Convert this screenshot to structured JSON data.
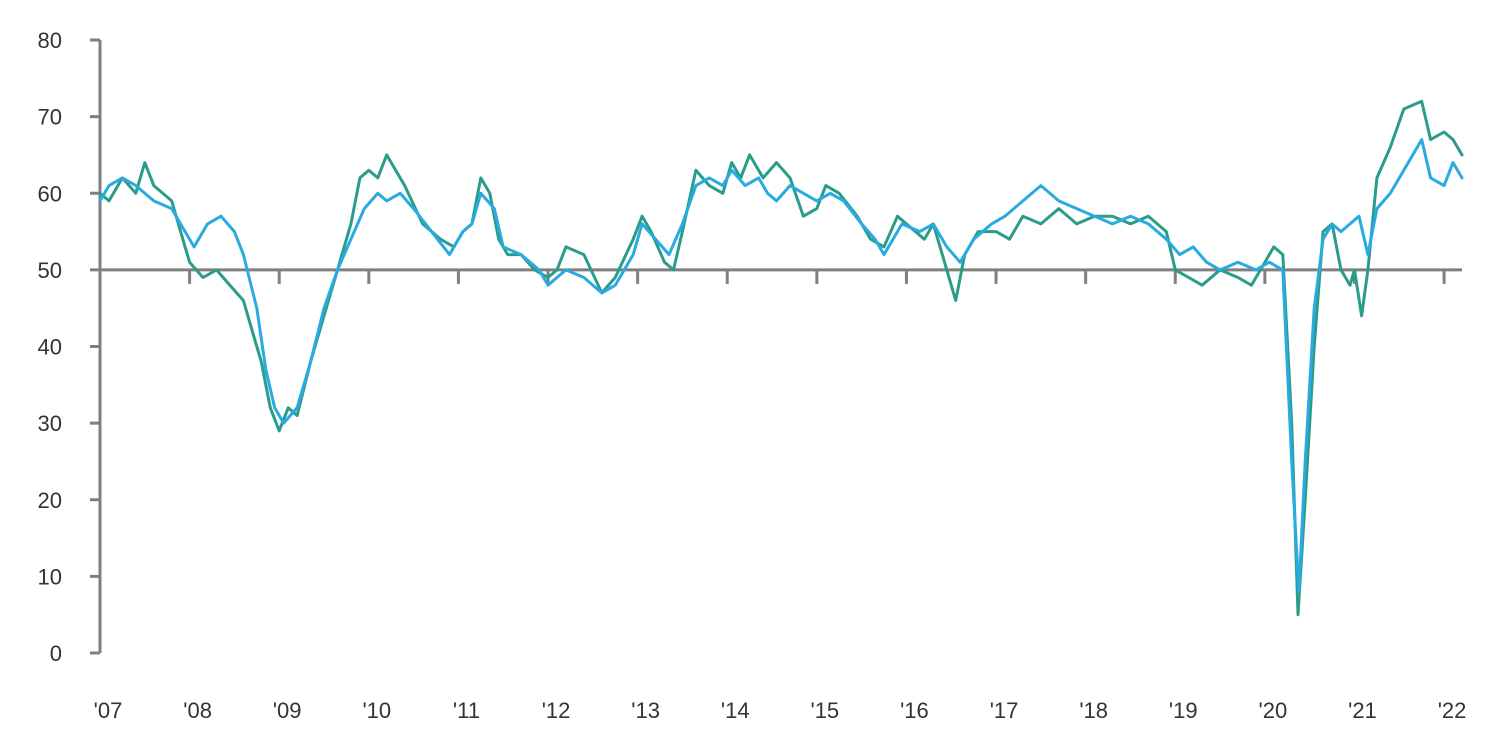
{
  "chart_data": {
    "type": "line",
    "title": "",
    "xlabel": "",
    "ylabel": "",
    "ylim": [
      0,
      80
    ],
    "yticks": [
      0,
      10,
      20,
      30,
      40,
      50,
      60,
      70,
      80
    ],
    "ytick_labels": [
      "0",
      "10",
      "20",
      "30",
      "40",
      "50",
      "60",
      "70",
      "80"
    ],
    "xlim": [
      2007.0,
      2022.2
    ],
    "xticks": [
      2007,
      2008,
      2009,
      2010,
      2011,
      2012,
      2013,
      2014,
      2015,
      2016,
      2017,
      2018,
      2019,
      2020,
      2021,
      2022
    ],
    "xtick_labels": [
      "'07",
      "'08",
      "'09",
      "'10",
      "'11",
      "'12",
      "'13",
      "'14",
      "'15",
      "'16",
      "'17",
      "'18",
      "'19",
      "'20",
      "'21",
      "'22"
    ],
    "reference_line": 50,
    "grid": false,
    "legend": "none",
    "colors": {
      "series_a": "#2a9d8a",
      "series_b": "#29abe2",
      "axis": "#7f7f7f"
    },
    "series": [
      {
        "color": "#2a9d8a",
        "points": [
          [
            2007.0,
            60
          ],
          [
            2007.1,
            59
          ],
          [
            2007.25,
            62
          ],
          [
            2007.4,
            60
          ],
          [
            2007.5,
            64
          ],
          [
            2007.6,
            61
          ],
          [
            2007.8,
            59
          ],
          [
            2007.95,
            53
          ],
          [
            2008.0,
            51
          ],
          [
            2008.15,
            49
          ],
          [
            2008.3,
            50
          ],
          [
            2008.45,
            48
          ],
          [
            2008.6,
            46
          ],
          [
            2008.7,
            42
          ],
          [
            2008.8,
            38
          ],
          [
            2008.9,
            32
          ],
          [
            2009.0,
            29
          ],
          [
            2009.1,
            32
          ],
          [
            2009.2,
            31
          ],
          [
            2009.35,
            38
          ],
          [
            2009.5,
            44
          ],
          [
            2009.65,
            50
          ],
          [
            2009.8,
            56
          ],
          [
            2009.9,
            62
          ],
          [
            2010.0,
            63
          ],
          [
            2010.1,
            62
          ],
          [
            2010.2,
            65
          ],
          [
            2010.4,
            61
          ],
          [
            2010.6,
            56
          ],
          [
            2010.8,
            54
          ],
          [
            2010.95,
            53
          ],
          [
            2011.05,
            55
          ],
          [
            2011.15,
            56
          ],
          [
            2011.25,
            62
          ],
          [
            2011.35,
            60
          ],
          [
            2011.45,
            54
          ],
          [
            2011.55,
            52
          ],
          [
            2011.7,
            52
          ],
          [
            2011.85,
            50
          ],
          [
            2012.0,
            49
          ],
          [
            2012.1,
            50
          ],
          [
            2012.2,
            53
          ],
          [
            2012.4,
            52
          ],
          [
            2012.6,
            47
          ],
          [
            2012.75,
            49
          ],
          [
            2012.95,
            54
          ],
          [
            2013.05,
            57
          ],
          [
            2013.15,
            55
          ],
          [
            2013.3,
            51
          ],
          [
            2013.4,
            50
          ],
          [
            2013.5,
            55
          ],
          [
            2013.65,
            63
          ],
          [
            2013.8,
            61
          ],
          [
            2013.95,
            60
          ],
          [
            2014.05,
            64
          ],
          [
            2014.15,
            62
          ],
          [
            2014.25,
            65
          ],
          [
            2014.4,
            62
          ],
          [
            2014.55,
            64
          ],
          [
            2014.7,
            62
          ],
          [
            2014.85,
            57
          ],
          [
            2015.0,
            58
          ],
          [
            2015.1,
            61
          ],
          [
            2015.25,
            60
          ],
          [
            2015.45,
            57
          ],
          [
            2015.6,
            54
          ],
          [
            2015.75,
            53
          ],
          [
            2015.9,
            57
          ],
          [
            2016.1,
            55
          ],
          [
            2016.2,
            54
          ],
          [
            2016.3,
            56
          ],
          [
            2016.45,
            50
          ],
          [
            2016.55,
            46
          ],
          [
            2016.65,
            52
          ],
          [
            2016.8,
            55
          ],
          [
            2017.0,
            55
          ],
          [
            2017.15,
            54
          ],
          [
            2017.3,
            57
          ],
          [
            2017.5,
            56
          ],
          [
            2017.7,
            58
          ],
          [
            2017.9,
            56
          ],
          [
            2018.1,
            57
          ],
          [
            2018.3,
            57
          ],
          [
            2018.5,
            56
          ],
          [
            2018.7,
            57
          ],
          [
            2018.9,
            55
          ],
          [
            2019.0,
            50
          ],
          [
            2019.15,
            49
          ],
          [
            2019.3,
            48
          ],
          [
            2019.5,
            50
          ],
          [
            2019.7,
            49
          ],
          [
            2019.85,
            48
          ],
          [
            2020.0,
            51
          ],
          [
            2020.1,
            53
          ],
          [
            2020.2,
            52
          ],
          [
            2020.3,
            30
          ],
          [
            2020.37,
            5
          ],
          [
            2020.45,
            20
          ],
          [
            2020.55,
            40
          ],
          [
            2020.65,
            55
          ],
          [
            2020.75,
            56
          ],
          [
            2020.85,
            50
          ],
          [
            2020.95,
            48
          ],
          [
            2021.0,
            50
          ],
          [
            2021.08,
            44
          ],
          [
            2021.15,
            50
          ],
          [
            2021.25,
            62
          ],
          [
            2021.4,
            66
          ],
          [
            2021.55,
            71
          ],
          [
            2021.75,
            72
          ],
          [
            2021.85,
            67
          ],
          [
            2022.0,
            68
          ],
          [
            2022.1,
            67
          ],
          [
            2022.2,
            65
          ]
        ]
      },
      {
        "color": "#29abe2",
        "points": [
          [
            2007.0,
            59
          ],
          [
            2007.1,
            61
          ],
          [
            2007.25,
            62
          ],
          [
            2007.4,
            61
          ],
          [
            2007.6,
            59
          ],
          [
            2007.8,
            58
          ],
          [
            2007.95,
            55
          ],
          [
            2008.05,
            53
          ],
          [
            2008.2,
            56
          ],
          [
            2008.35,
            57
          ],
          [
            2008.5,
            55
          ],
          [
            2008.6,
            52
          ],
          [
            2008.75,
            45
          ],
          [
            2008.85,
            37
          ],
          [
            2008.95,
            32
          ],
          [
            2009.05,
            30
          ],
          [
            2009.2,
            32
          ],
          [
            2009.35,
            38
          ],
          [
            2009.5,
            45
          ],
          [
            2009.65,
            50
          ],
          [
            2009.8,
            54
          ],
          [
            2009.95,
            58
          ],
          [
            2010.1,
            60
          ],
          [
            2010.2,
            59
          ],
          [
            2010.35,
            60
          ],
          [
            2010.5,
            58
          ],
          [
            2010.7,
            55
          ],
          [
            2010.9,
            52
          ],
          [
            2011.05,
            55
          ],
          [
            2011.15,
            56
          ],
          [
            2011.25,
            60
          ],
          [
            2011.4,
            58
          ],
          [
            2011.5,
            53
          ],
          [
            2011.7,
            52
          ],
          [
            2011.9,
            50
          ],
          [
            2012.0,
            48
          ],
          [
            2012.2,
            50
          ],
          [
            2012.4,
            49
          ],
          [
            2012.6,
            47
          ],
          [
            2012.75,
            48
          ],
          [
            2012.95,
            52
          ],
          [
            2013.05,
            56
          ],
          [
            2013.2,
            54
          ],
          [
            2013.35,
            52
          ],
          [
            2013.5,
            56
          ],
          [
            2013.65,
            61
          ],
          [
            2013.8,
            62
          ],
          [
            2013.95,
            61
          ],
          [
            2014.05,
            63
          ],
          [
            2014.2,
            61
          ],
          [
            2014.35,
            62
          ],
          [
            2014.45,
            60
          ],
          [
            2014.55,
            59
          ],
          [
            2014.7,
            61
          ],
          [
            2014.85,
            60
          ],
          [
            2015.0,
            59
          ],
          [
            2015.15,
            60
          ],
          [
            2015.3,
            59
          ],
          [
            2015.5,
            56
          ],
          [
            2015.65,
            54
          ],
          [
            2015.75,
            52
          ],
          [
            2015.95,
            56
          ],
          [
            2016.15,
            55
          ],
          [
            2016.3,
            56
          ],
          [
            2016.45,
            53
          ],
          [
            2016.6,
            51
          ],
          [
            2016.75,
            54
          ],
          [
            2016.95,
            56
          ],
          [
            2017.1,
            57
          ],
          [
            2017.3,
            59
          ],
          [
            2017.5,
            61
          ],
          [
            2017.7,
            59
          ],
          [
            2017.9,
            58
          ],
          [
            2018.1,
            57
          ],
          [
            2018.3,
            56
          ],
          [
            2018.5,
            57
          ],
          [
            2018.7,
            56
          ],
          [
            2018.9,
            54
          ],
          [
            2019.05,
            52
          ],
          [
            2019.2,
            53
          ],
          [
            2019.35,
            51
          ],
          [
            2019.5,
            50
          ],
          [
            2019.7,
            51
          ],
          [
            2019.9,
            50
          ],
          [
            2020.05,
            51
          ],
          [
            2020.2,
            50
          ],
          [
            2020.3,
            25
          ],
          [
            2020.38,
            8
          ],
          [
            2020.45,
            25
          ],
          [
            2020.55,
            45
          ],
          [
            2020.65,
            54
          ],
          [
            2020.75,
            56
          ],
          [
            2020.85,
            55
          ],
          [
            2020.95,
            56
          ],
          [
            2021.05,
            57
          ],
          [
            2021.15,
            52
          ],
          [
            2021.25,
            58
          ],
          [
            2021.4,
            60
          ],
          [
            2021.55,
            63
          ],
          [
            2021.75,
            67
          ],
          [
            2021.85,
            62
          ],
          [
            2022.0,
            61
          ],
          [
            2022.1,
            64
          ],
          [
            2022.2,
            62
          ]
        ]
      }
    ]
  }
}
